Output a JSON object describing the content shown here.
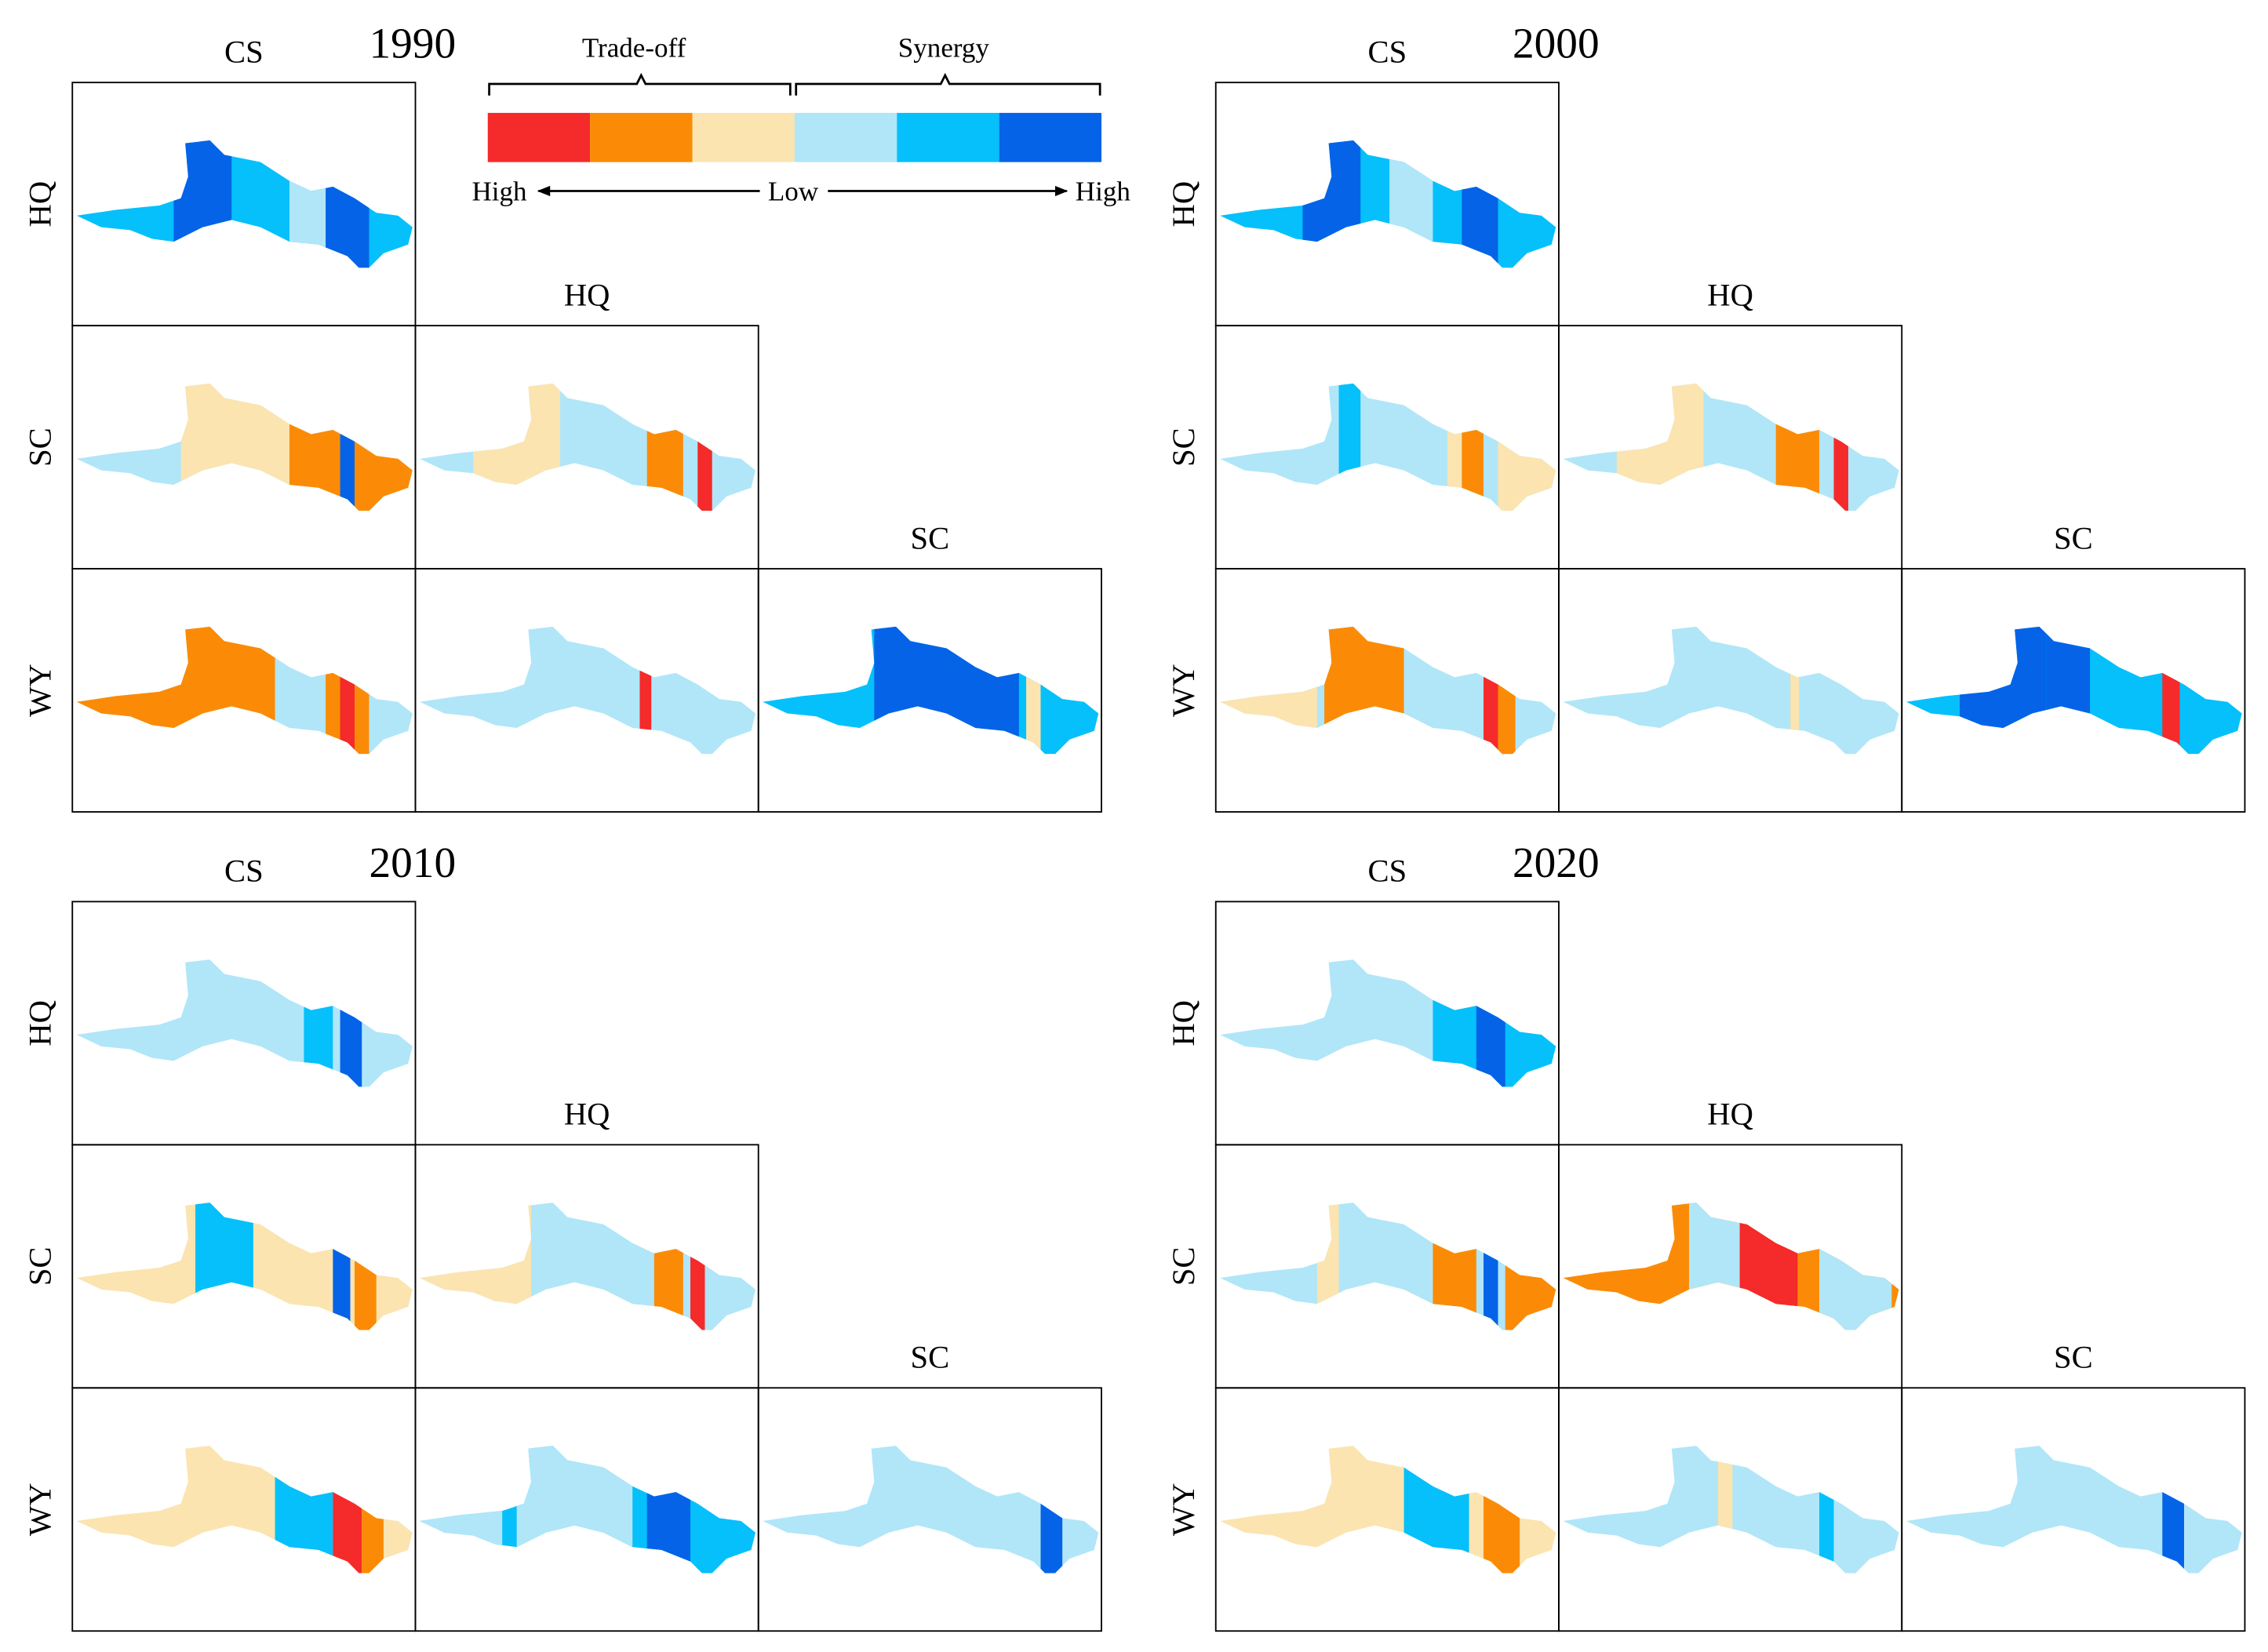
{
  "legend": {
    "tradeoff": "Trade-off",
    "synergy": "Synergy",
    "left": "High",
    "center": "Low",
    "right": "High",
    "colors": [
      "#f52a2a",
      "#fb8b06",
      "#fbe4b0",
      "#b0e6f8",
      "#05c0fb",
      "#0563e8"
    ]
  },
  "panels": [
    {
      "year": "1990",
      "columns": [
        "CS",
        "HQ",
        "SC"
      ],
      "rows": [
        "HQ",
        "SC",
        "WY"
      ]
    },
    {
      "year": "2000",
      "columns": [
        "CS",
        "HQ",
        "SC"
      ],
      "rows": [
        "HQ",
        "SC",
        "WY"
      ]
    },
    {
      "year": "2010",
      "columns": [
        "CS",
        "HQ",
        "SC"
      ],
      "rows": [
        "HQ",
        "SC",
        "WY"
      ]
    },
    {
      "year": "2020",
      "columns": [
        "CS",
        "HQ",
        "SC"
      ],
      "rows": [
        "HQ",
        "SC",
        "WY"
      ]
    }
  ]
}
